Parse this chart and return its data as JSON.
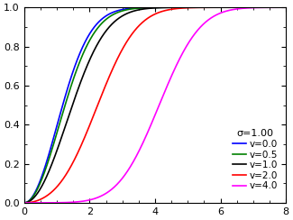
{
  "title": "σ=1.00",
  "sigma": 1.0,
  "nu_values": [
    0.0,
    0.5,
    1.0,
    2.0,
    4.0
  ],
  "colors": [
    "blue",
    "green",
    "black",
    "red",
    "magenta"
  ],
  "labels": [
    "v=0.0",
    "v=0.5",
    "v=1.0",
    "v=2.0",
    "v=4.0"
  ],
  "xlim": [
    0,
    8
  ],
  "ylim": [
    0,
    1
  ],
  "xticks": [
    0,
    2,
    4,
    6,
    8
  ],
  "yticks": [
    0.0,
    0.2,
    0.4,
    0.6,
    0.8,
    1.0
  ],
  "figsize": [
    3.25,
    2.44
  ],
  "dpi": 100
}
